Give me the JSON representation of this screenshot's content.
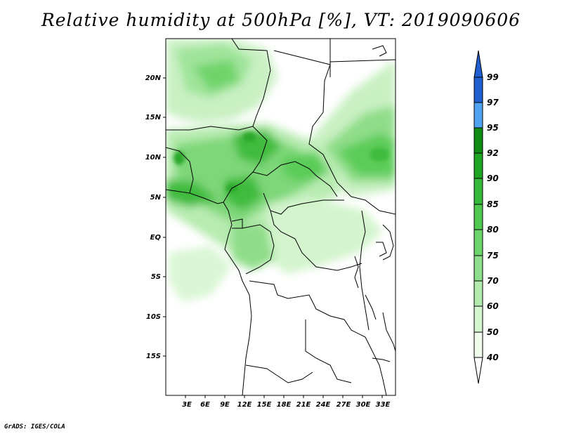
{
  "title": "Relative humidity at 500hPa [%], VT: 2019090606",
  "credit": "GrADS: IGES/COLA",
  "map": {
    "lon_labels": [
      "3E",
      "6E",
      "9E",
      "12E",
      "15E",
      "18E",
      "21E",
      "24E",
      "27E",
      "30E",
      "33E"
    ],
    "lat_labels": [
      "20N",
      "15N",
      "10N",
      "5N",
      "EQ",
      "5S",
      "10S",
      "15S"
    ],
    "lon_range": [
      0,
      35
    ],
    "lat_range": [
      -20,
      25
    ],
    "field": "relative humidity",
    "level": "500hPa",
    "units": "%"
  },
  "colorbar": {
    "levels": [
      "99",
      "97",
      "95",
      "92",
      "90",
      "85",
      "80",
      "75",
      "70",
      "60",
      "50",
      "40"
    ],
    "colors": [
      "#1f5fcf",
      "#2d7fe0",
      "#4fa3f0",
      "#108c14",
      "#1ea523",
      "#34b93a",
      "#4fc94f",
      "#6bd56b",
      "#8edf8c",
      "#b3ebae",
      "#d5f5d1",
      "#effcec"
    ],
    "over_color": "#1f5fcf",
    "under_color": "#ffffff"
  }
}
